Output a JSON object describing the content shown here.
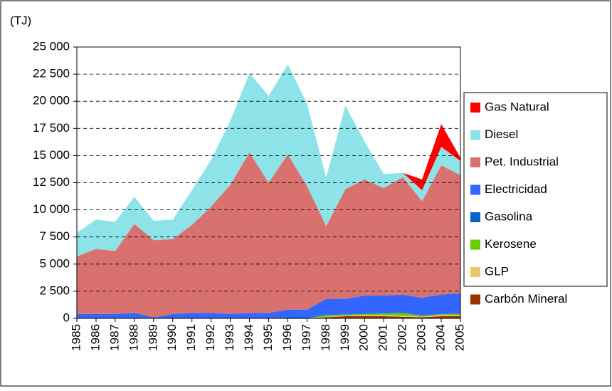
{
  "chart_data": {
    "type": "stacked_area",
    "y_label": "(TJ)",
    "x": [
      "1985",
      "1986",
      "1987",
      "1988",
      "1989",
      "1990",
      "1991",
      "1992",
      "1993",
      "1994",
      "1995",
      "1996",
      "1997",
      "1998",
      "1999",
      "2000",
      "2001",
      "2002",
      "2003",
      "2004",
      "2005"
    ],
    "series": [
      {
        "name": "Gas Natural",
        "color": "#ff0000",
        "values": [
          0,
          0,
          0,
          0,
          0,
          0,
          0,
          0,
          0,
          0,
          0,
          0,
          0,
          0,
          0,
          0,
          0,
          0,
          1000,
          2100,
          300
        ]
      },
      {
        "name": "Diesel",
        "color": "#8de3e8",
        "values": [
          2200,
          2700,
          2700,
          2500,
          1800,
          1800,
          3200,
          4300,
          5900,
          7300,
          8000,
          8300,
          7600,
          4500,
          7700,
          3500,
          1300,
          400,
          1000,
          1700,
          1300
        ]
      },
      {
        "name": "Pet. Industrial",
        "color": "#d9726f",
        "values": [
          5300,
          6000,
          5800,
          8200,
          7100,
          6900,
          8100,
          9800,
          11900,
          14800,
          12000,
          14300,
          11400,
          6700,
          10100,
          10700,
          9900,
          10800,
          8900,
          11900,
          10900
        ]
      },
      {
        "name": "Electricidad",
        "color": "#3366ff",
        "values": [
          400,
          400,
          400,
          500,
          100,
          400,
          500,
          500,
          400,
          500,
          500,
          700,
          700,
          1500,
          1450,
          1700,
          1650,
          1700,
          1650,
          1800,
          1900
        ]
      },
      {
        "name": "Gasolina",
        "color": "#0066cc",
        "values": [
          0,
          0,
          0,
          0,
          0,
          0,
          0,
          0,
          0,
          0,
          0,
          100,
          100,
          0,
          0,
          0,
          0,
          0,
          0,
          0,
          0
        ]
      },
      {
        "name": "Kerosene",
        "color": "#66cc00",
        "values": [
          0,
          0,
          0,
          0,
          0,
          0,
          0,
          0,
          0,
          0,
          0,
          0,
          0,
          150,
          100,
          100,
          150,
          250,
          100,
          100,
          100
        ]
      },
      {
        "name": "GLP",
        "color": "#e6c86e",
        "values": [
          0,
          0,
          0,
          0,
          0,
          0,
          0,
          0,
          0,
          0,
          0,
          0,
          0,
          50,
          50,
          100,
          100,
          100,
          50,
          100,
          100
        ]
      },
      {
        "name": "Carbón Mineral",
        "color": "#993300",
        "values": [
          0,
          0,
          0,
          0,
          0,
          0,
          0,
          0,
          0,
          0,
          0,
          0,
          0,
          100,
          200,
          200,
          200,
          150,
          100,
          200,
          200
        ]
      }
    ],
    "ylim": [
      0,
      25000
    ],
    "yticks": [
      0,
      {
        "value": 2500,
        "label": "2 500"
      },
      {
        "value": 5000,
        "label": "5 000"
      },
      {
        "value": 7500,
        "label": "7 500"
      },
      {
        "value": 10000,
        "label": "10 000"
      },
      {
        "value": 12500,
        "label": "12 500"
      },
      {
        "value": 15000,
        "label": "15 000"
      },
      {
        "value": 17500,
        "label": "17 500"
      },
      {
        "value": 20000,
        "label": "20 000"
      },
      {
        "value": 22500,
        "label": "22 500"
      },
      {
        "value": 25000,
        "label": "25 000"
      }
    ],
    "grid": true,
    "legend": "right"
  }
}
